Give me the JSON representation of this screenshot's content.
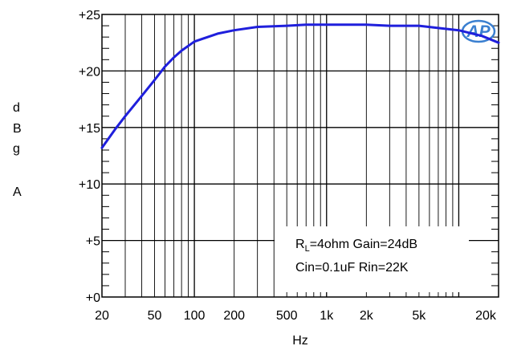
{
  "chart_data": {
    "type": "line",
    "xscale": "log",
    "xlim": [
      20,
      20000
    ],
    "ylim": [
      0,
      25
    ],
    "grid": true,
    "xlabel": "Hz",
    "ylabel_lines": [
      "d",
      "B",
      "g",
      "A"
    ],
    "x_ticks": [
      {
        "value": 20,
        "label": "20"
      },
      {
        "value": 50,
        "label": "50"
      },
      {
        "value": 100,
        "label": "100"
      },
      {
        "value": 200,
        "label": "200"
      },
      {
        "value": 500,
        "label": "500"
      },
      {
        "value": 1000,
        "label": "1k"
      },
      {
        "value": 2000,
        "label": "2k"
      },
      {
        "value": 5000,
        "label": "5k"
      },
      {
        "value": 20000,
        "label": "20k"
      }
    ],
    "y_ticks": [
      {
        "value": 0,
        "label": "+0"
      },
      {
        "value": 5,
        "label": "+5"
      },
      {
        "value": 10,
        "label": "+10"
      },
      {
        "value": 15,
        "label": "+15"
      },
      {
        "value": 20,
        "label": "+20"
      },
      {
        "value": 25,
        "label": "+25"
      }
    ],
    "series": [
      {
        "color": "#1f1fdc",
        "x": [
          20,
          25,
          30,
          40,
          50,
          60,
          70,
          80,
          100,
          150,
          200,
          300,
          500,
          700,
          1000,
          2000,
          3000,
          5000,
          7000,
          10000,
          15000,
          20000
        ],
        "y": [
          13.2,
          14.8,
          16.0,
          17.8,
          19.2,
          20.4,
          21.2,
          21.8,
          22.6,
          23.3,
          23.6,
          23.9,
          24.0,
          24.1,
          24.1,
          24.1,
          24.0,
          24.0,
          23.8,
          23.6,
          23.1,
          22.5
        ]
      }
    ],
    "annotation": {
      "line1_subject": "R",
      "line1_subscript": "L",
      "line1_rest": "=4ohm Gain=24dB",
      "line2": "Cin=0.1uF Rin=22K"
    },
    "logo_text": "AP"
  }
}
